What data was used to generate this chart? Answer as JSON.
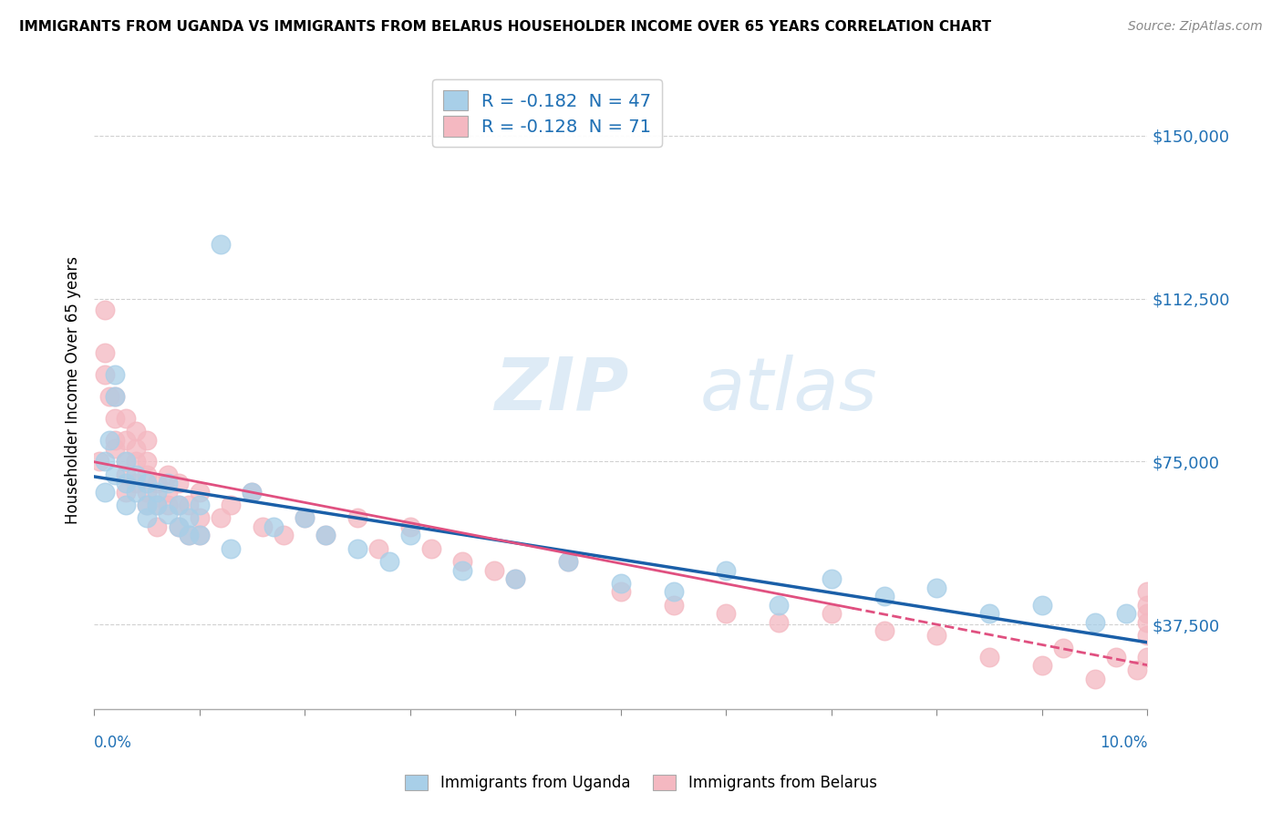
{
  "title": "IMMIGRANTS FROM UGANDA VS IMMIGRANTS FROM BELARUS HOUSEHOLDER INCOME OVER 65 YEARS CORRELATION CHART",
  "source": "Source: ZipAtlas.com",
  "ylabel": "Householder Income Over 65 years",
  "legend_uganda": "R = -0.182  N = 47",
  "legend_belarus": "R = -0.128  N = 71",
  "legend_bottom_uganda": "Immigrants from Uganda",
  "legend_bottom_belarus": "Immigrants from Belarus",
  "yticks": [
    37500,
    75000,
    112500,
    150000
  ],
  "ytick_labels": [
    "$37,500",
    "$75,000",
    "$112,500",
    "$150,000"
  ],
  "xlim": [
    0.0,
    0.1
  ],
  "ylim": [
    18000,
    165000
  ],
  "color_uganda": "#a8cfe8",
  "color_belarus": "#f4b8c1",
  "trend_uganda_color": "#1a5fa8",
  "trend_belarus_color": "#e05080",
  "uganda_x": [
    0.001,
    0.001,
    0.0015,
    0.002,
    0.002,
    0.002,
    0.003,
    0.003,
    0.003,
    0.004,
    0.004,
    0.005,
    0.005,
    0.005,
    0.006,
    0.006,
    0.007,
    0.007,
    0.008,
    0.008,
    0.009,
    0.009,
    0.01,
    0.01,
    0.012,
    0.013,
    0.015,
    0.017,
    0.02,
    0.022,
    0.025,
    0.028,
    0.03,
    0.035,
    0.04,
    0.045,
    0.05,
    0.055,
    0.06,
    0.065,
    0.07,
    0.075,
    0.08,
    0.085,
    0.09,
    0.095,
    0.098
  ],
  "uganda_y": [
    75000,
    68000,
    80000,
    90000,
    95000,
    72000,
    70000,
    75000,
    65000,
    68000,
    72000,
    65000,
    70000,
    62000,
    68000,
    65000,
    63000,
    70000,
    60000,
    65000,
    62000,
    58000,
    65000,
    58000,
    125000,
    55000,
    68000,
    60000,
    62000,
    58000,
    55000,
    52000,
    58000,
    50000,
    48000,
    52000,
    47000,
    45000,
    50000,
    42000,
    48000,
    44000,
    46000,
    40000,
    42000,
    38000,
    40000
  ],
  "belarus_x": [
    0.0005,
    0.001,
    0.001,
    0.001,
    0.0015,
    0.002,
    0.002,
    0.002,
    0.002,
    0.003,
    0.003,
    0.003,
    0.003,
    0.003,
    0.004,
    0.004,
    0.004,
    0.004,
    0.005,
    0.005,
    0.005,
    0.005,
    0.005,
    0.006,
    0.006,
    0.006,
    0.007,
    0.007,
    0.007,
    0.008,
    0.008,
    0.008,
    0.009,
    0.009,
    0.01,
    0.01,
    0.01,
    0.012,
    0.013,
    0.015,
    0.016,
    0.018,
    0.02,
    0.022,
    0.025,
    0.027,
    0.03,
    0.032,
    0.035,
    0.038,
    0.04,
    0.045,
    0.05,
    0.055,
    0.06,
    0.065,
    0.07,
    0.075,
    0.08,
    0.085,
    0.09,
    0.092,
    0.095,
    0.097,
    0.099,
    0.1,
    0.1,
    0.1,
    0.1,
    0.1,
    0.1
  ],
  "belarus_y": [
    75000,
    110000,
    95000,
    100000,
    90000,
    78000,
    85000,
    90000,
    80000,
    75000,
    80000,
    72000,
    68000,
    85000,
    70000,
    75000,
    78000,
    82000,
    68000,
    72000,
    75000,
    65000,
    80000,
    65000,
    70000,
    60000,
    65000,
    68000,
    72000,
    60000,
    65000,
    70000,
    58000,
    65000,
    62000,
    58000,
    68000,
    62000,
    65000,
    68000,
    60000,
    58000,
    62000,
    58000,
    62000,
    55000,
    60000,
    55000,
    52000,
    50000,
    48000,
    52000,
    45000,
    42000,
    40000,
    38000,
    40000,
    36000,
    35000,
    30000,
    28000,
    32000,
    25000,
    30000,
    27000,
    40000,
    35000,
    45000,
    38000,
    42000,
    30000
  ]
}
